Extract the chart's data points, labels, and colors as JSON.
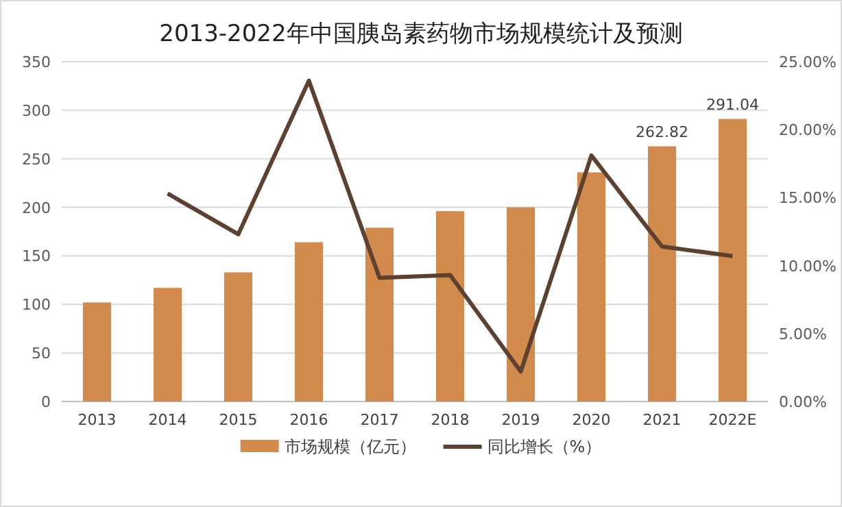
{
  "chart_data": {
    "type": "bar",
    "title": "2013-2022年中国胰岛素药物市场规模统计及预测",
    "categories": [
      "2013",
      "2014",
      "2015",
      "2016",
      "2017",
      "2018",
      "2019",
      "2020",
      "2021",
      "2022E"
    ],
    "series": [
      {
        "name": "市场规模（亿元）",
        "color": "#d38b4d",
        "values": [
          102,
          117,
          133,
          164,
          179,
          196,
          200,
          236,
          262.82,
          291.04
        ],
        "value_labels": [
          null,
          null,
          null,
          null,
          null,
          null,
          null,
          null,
          "262.82",
          "291.04"
        ]
      },
      {
        "name": "同比增长（%）",
        "type": "line",
        "axis": "y2",
        "color": "#5c4130",
        "values": [
          null,
          15.3,
          12.3,
          23.6,
          9.1,
          9.3,
          2.2,
          18.1,
          11.4,
          10.7
        ]
      }
    ],
    "ylim": [
      0,
      350
    ],
    "yticks": [
      0,
      50,
      100,
      150,
      200,
      250,
      300,
      350
    ],
    "y2lim": [
      0,
      25
    ],
    "y2ticks": [
      {
        "value": 0,
        "label": "0.00%"
      },
      {
        "value": 5,
        "label": "5.00%"
      },
      {
        "value": 10,
        "label": "10.00%"
      },
      {
        "value": 15,
        "label": "15.00%"
      },
      {
        "value": 20,
        "label": "20.00%"
      },
      {
        "value": 25,
        "label": "25.00%"
      }
    ],
    "grid": "y",
    "legend": "bottom",
    "marker": "none",
    "line_style": "solid"
  }
}
